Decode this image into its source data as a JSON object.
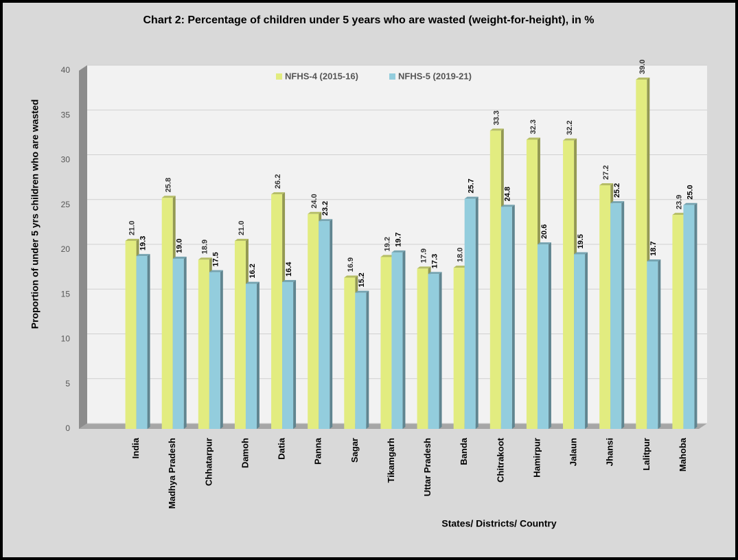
{
  "chart_data": {
    "type": "bar",
    "title": "Chart 2: Percentage of children under 5 years who are wasted (weight-for-height),  in %",
    "x_label": "States/ Districts/ Country",
    "y_label": "Proportion of under 5 yrs children who are wasted",
    "categories": [
      "India",
      "Madhya Pradesh",
      "Chhatarpur",
      "Damoh",
      "Datia",
      "Panna",
      "Sagar",
      "Tikamgarh",
      "Uttar Pradesh",
      "Banda",
      "Chitrakoot",
      "Hamirpur",
      "Jalaun",
      "Jhansi",
      "Lalitpur",
      "Mahoba"
    ],
    "series": [
      {
        "name": "NFHS-4 (2015-16)",
        "color": "#e2ec80",
        "values": [
          21.0,
          25.8,
          18.9,
          21.0,
          26.2,
          24.0,
          16.9,
          19.2,
          17.9,
          18.0,
          33.3,
          32.3,
          32.2,
          27.2,
          39.0,
          23.9
        ],
        "value_labels": [
          "21.0",
          "25.8",
          "18.9",
          "21.0",
          "26.2",
          "24.0",
          "16.9",
          "19.2",
          "17.9",
          "18.0",
          "33.3",
          "32.3",
          "32.2",
          "27.2",
          "39.0",
          "23.9"
        ]
      },
      {
        "name": "NFHS-5 (2019-21)",
        "color": "#93cddd",
        "values": [
          19.3,
          19.0,
          17.5,
          16.2,
          16.4,
          23.2,
          15.2,
          19.7,
          17.3,
          25.7,
          24.8,
          20.6,
          19.5,
          25.2,
          18.7,
          25.0
        ],
        "value_labels": [
          "19.3",
          "19.0",
          "17.5",
          "16.2",
          "16.4",
          "23.2",
          "15.2",
          "19.7",
          "17.3",
          "25.7",
          "24.8",
          "20.6",
          "19.5",
          "25.2",
          "18.7",
          "25.0"
        ]
      }
    ],
    "ylim": [
      0,
      40
    ],
    "yticks": [
      0,
      5,
      10,
      15,
      20,
      25,
      30,
      35,
      40
    ],
    "grid": true,
    "legend": "top"
  }
}
